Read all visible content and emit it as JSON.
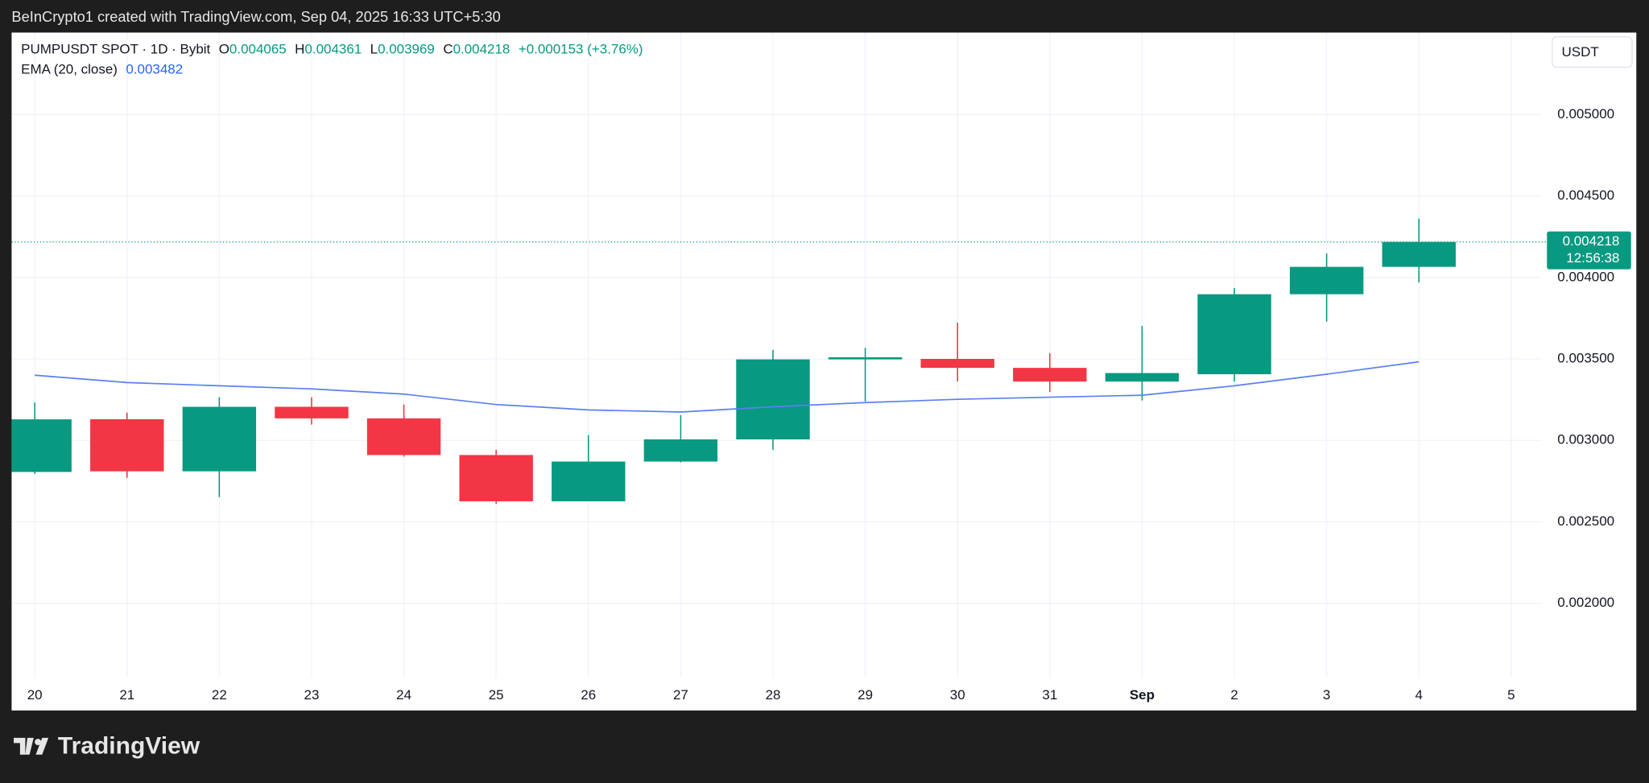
{
  "header": {
    "credit": "BeInCrypto1 created with TradingView.com, Sep 04, 2025 16:33 UTC+5:30"
  },
  "footer": {
    "logo": "TradingView"
  },
  "chart_data": {
    "type": "candlestick",
    "symbol": "PUMPUSDT SPOT · 1D · Bybit",
    "ohlc_labels": [
      "O",
      "H",
      "L",
      "C"
    ],
    "change": "+0.000153 (+3.76%)",
    "currency": "USDT",
    "countdown": "12:56:38",
    "categories": [
      "20",
      "21",
      "22",
      "23",
      "24",
      "25",
      "26",
      "27",
      "28",
      "29",
      "30",
      "31",
      "Sep",
      "2",
      "3",
      "4",
      "5"
    ],
    "open": [
      0.002806,
      0.00313,
      0.00281,
      0.003206,
      0.003135,
      0.00291,
      0.002626,
      0.00287,
      0.003006,
      0.003497,
      0.0035,
      0.003445,
      0.003361,
      0.003406,
      0.003897,
      0.004065,
      null
    ],
    "high": [
      0.003232,
      0.00317,
      0.003265,
      0.003265,
      0.00322,
      0.002942,
      0.003032,
      0.003155,
      0.003555,
      0.003568,
      0.003723,
      0.003535,
      0.003703,
      0.003935,
      0.004148,
      0.004361,
      null
    ],
    "low": [
      0.002794,
      0.00277,
      0.002652,
      0.003097,
      0.0029,
      0.00261,
      0.002626,
      0.002865,
      0.002942,
      0.003239,
      0.003361,
      0.003297,
      0.003245,
      0.003361,
      0.003729,
      0.003969,
      null
    ],
    "close": [
      0.003129,
      0.00281,
      0.003206,
      0.003135,
      0.00291,
      0.002626,
      0.00287,
      0.003006,
      0.003497,
      0.00351,
      0.003445,
      0.003361,
      0.003413,
      0.003897,
      0.004065,
      0.004218,
      null
    ],
    "up_color": "#089981",
    "down_color": "#f23645",
    "ema": {
      "name": "EMA (20, close)",
      "color": "#5b7ff0",
      "values": [
        0.0034,
        0.003355,
        0.003335,
        0.003316,
        0.003284,
        0.00322,
        0.003187,
        0.003174,
        0.003206,
        0.003232,
        0.003252,
        0.003265,
        0.003277,
        0.003335,
        0.003406,
        0.003482,
        null
      ]
    },
    "ylim": [
      0.001542,
      0.005503
    ],
    "yticks": [
      {
        "value": 0.002,
        "label": "0.002000"
      },
      {
        "value": 0.0025,
        "label": "0.002500"
      },
      {
        "value": 0.003,
        "label": "0.003000"
      },
      {
        "value": 0.0035,
        "label": "0.003500"
      },
      {
        "value": 0.004,
        "label": "0.004000"
      },
      {
        "value": 0.0045,
        "label": "0.004500"
      },
      {
        "value": 0.005,
        "label": "0.005000"
      }
    ],
    "grid": true
  }
}
